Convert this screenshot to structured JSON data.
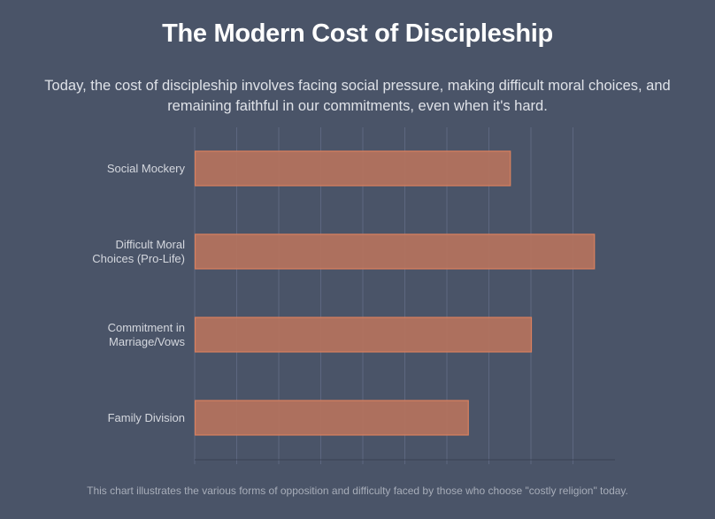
{
  "header": {
    "title": "The Modern Cost of Discipleship",
    "subtitle_lines": [
      "Today, the cost of discipleship involves facing social pressure, making difficult moral choices, and",
      "remaining faithful in our commitments, even when it's hard."
    ]
  },
  "footer": {
    "note": "This chart illustrates the various forms of opposition and difficulty faced by those who choose \"costly religion\" today."
  },
  "colors": {
    "background": "#4a5468",
    "bar_fill": "#b5735d",
    "bar_stroke": "#d9805f",
    "grid": "#5d6780",
    "axis": "#3a4254",
    "label": "#d4d7de"
  },
  "chart_data": {
    "type": "bar",
    "orientation": "horizontal",
    "title": "The Modern Cost of Discipleship",
    "xlabel": "",
    "ylabel": "",
    "categories": [
      [
        "Social Mockery"
      ],
      [
        "Difficult Moral",
        "Choices (Pro-Life)"
      ],
      [
        "Commitment in",
        "Marriage/Vows"
      ],
      [
        "Family Division"
      ]
    ],
    "values": [
      7.5,
      9.5,
      8,
      6.5
    ],
    "xlim": [
      0,
      10
    ],
    "x_ticks": [
      0,
      1,
      2,
      3,
      4,
      5,
      6,
      7,
      8,
      9,
      10
    ],
    "x_tick_labels_visible": false,
    "grid": true,
    "legend": "none"
  }
}
